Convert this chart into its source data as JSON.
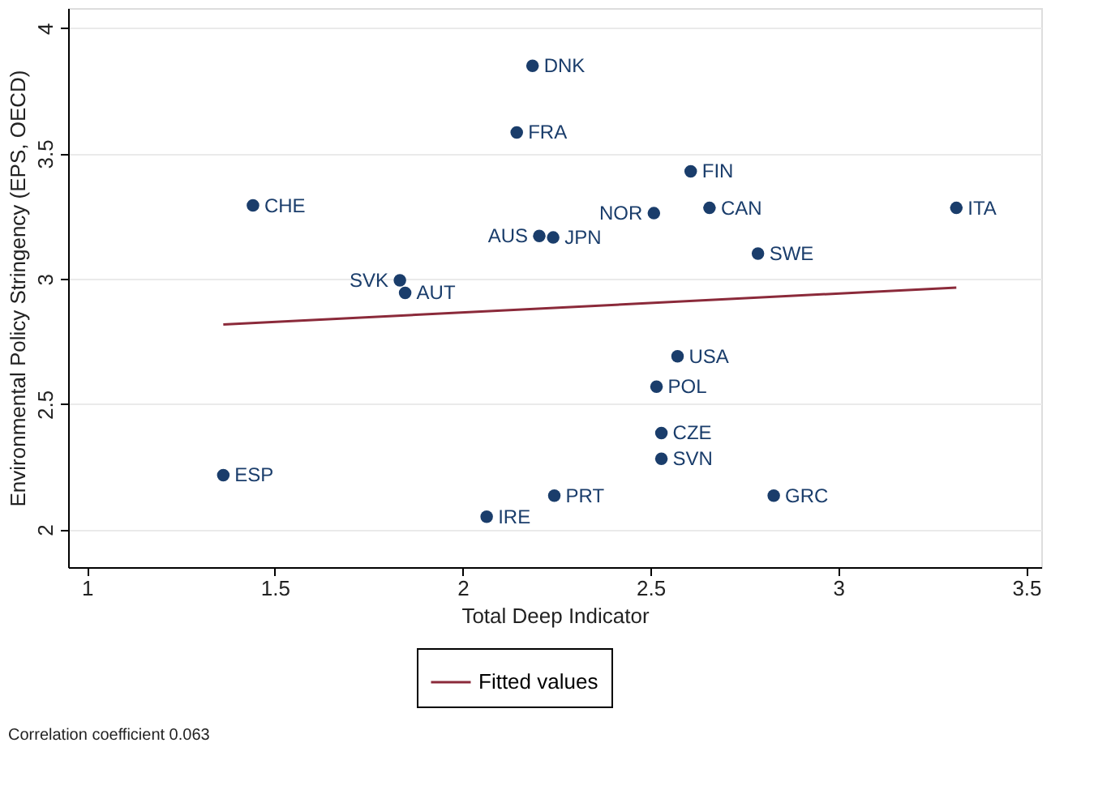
{
  "chart_data": {
    "type": "scatter",
    "xlabel": "Total Deep Indicator",
    "ylabel": "Environmental Policy Stringency (EPS, OECD)",
    "xlim": [
      0.95,
      3.54
    ],
    "ylim": [
      1.85,
      4.08
    ],
    "xticks": [
      1,
      1.5,
      2,
      2.5,
      3,
      3.5
    ],
    "yticks": [
      2,
      2.5,
      3,
      3.5,
      4
    ],
    "grid": "y",
    "legend": "bottom",
    "series": [
      {
        "color": "#1a3d6b",
        "marker": "circle",
        "x": [
          2.186,
          2.144,
          1.442,
          2.204,
          2.241,
          1.833,
          1.847,
          1.363,
          2.064,
          2.244,
          2.607,
          2.509,
          2.657,
          3.314,
          2.786,
          2.572,
          2.516,
          2.529,
          2.529,
          2.828
        ],
        "values": [
          3.85,
          3.584,
          3.293,
          3.171,
          3.165,
          2.994,
          2.944,
          2.217,
          2.051,
          2.135,
          3.429,
          3.262,
          3.283,
          3.283,
          3.101,
          2.691,
          2.57,
          2.385,
          2.282,
          2.135
        ]
      },
      {
        "type": "line",
        "name": "Fitted values",
        "color": "#8b2a3a",
        "line_style": "solid",
        "x": [
          1.363,
          3.314
        ],
        "values": [
          2.818,
          2.965
        ]
      }
    ],
    "annotations": [
      {
        "text": "DNK",
        "x": 2.186,
        "y": 3.85
      },
      {
        "text": "FRA",
        "x": 2.144,
        "y": 3.584
      },
      {
        "text": "CHE",
        "x": 1.442,
        "y": 3.293
      },
      {
        "text": "AUS",
        "x": 2.204,
        "y": 3.171
      },
      {
        "text": "JPN",
        "x": 2.241,
        "y": 3.165
      },
      {
        "text": "SVK",
        "x": 1.833,
        "y": 2.994
      },
      {
        "text": "AUT",
        "x": 1.847,
        "y": 2.944
      },
      {
        "text": "ESP",
        "x": 1.363,
        "y": 2.217
      },
      {
        "text": "IRE",
        "x": 2.064,
        "y": 2.051
      },
      {
        "text": "PRT",
        "x": 2.244,
        "y": 2.135
      },
      {
        "text": "FIN",
        "x": 2.607,
        "y": 3.429
      },
      {
        "text": "NOR",
        "x": 2.509,
        "y": 3.262
      },
      {
        "text": "CAN",
        "x": 2.657,
        "y": 3.283
      },
      {
        "text": "ITA",
        "x": 3.314,
        "y": 3.283
      },
      {
        "text": "SWE",
        "x": 2.786,
        "y": 3.101
      },
      {
        "text": "USA",
        "x": 2.572,
        "y": 2.691
      },
      {
        "text": "POL",
        "x": 2.516,
        "y": 2.57
      },
      {
        "text": "CZE",
        "x": 2.529,
        "y": 2.385
      },
      {
        "text": "SVN",
        "x": 2.529,
        "y": 2.282
      },
      {
        "text": "GRC",
        "x": 2.828,
        "y": 2.135
      },
      "Correlation coefficient 0.063"
    ]
  }
}
